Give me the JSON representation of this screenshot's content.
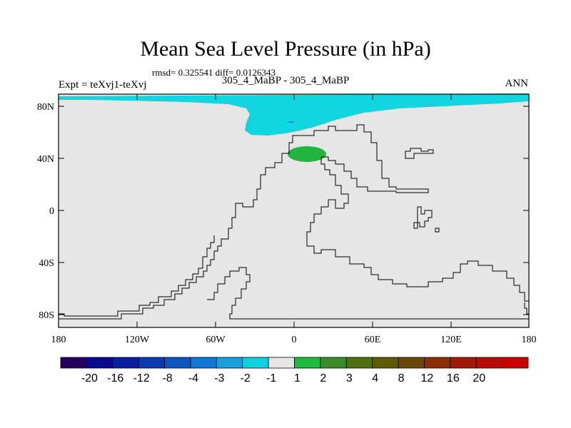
{
  "title": "Mean Sea Level Pressure (in hPa)",
  "stats": "rmsd= 0.325541 diff= 0.0126343",
  "experiment": "Expt = teXvj1-teXvj",
  "comparison": "305_4_MaBP - 305_4_MaBP",
  "season": "ANN",
  "y_ticks": [
    "80N",
    "40N",
    "0",
    "40S",
    "80S"
  ],
  "x_ticks": [
    "180",
    "120W",
    "60W",
    "0",
    "60E",
    "120E",
    "180"
  ],
  "colorbar": {
    "colors": [
      "#24005c",
      "#0c0a8c",
      "#0a1f9e",
      "#0a3ab0",
      "#0a57c2",
      "#0f78d2",
      "#1c9ed8",
      "#0fd2de",
      "#e6e6e6",
      "#1fbb3e",
      "#3b8a2c",
      "#4e6f12",
      "#5f5a06",
      "#6a4705",
      "#8a3008",
      "#a01a08",
      "#b50c06",
      "#cc0000"
    ],
    "labels": [
      "-20",
      "-16",
      "-12",
      "-8",
      "-4",
      "-3",
      "-2",
      "-1",
      "1",
      "2",
      "3",
      "4",
      "8",
      "12",
      "16",
      "20"
    ]
  }
}
